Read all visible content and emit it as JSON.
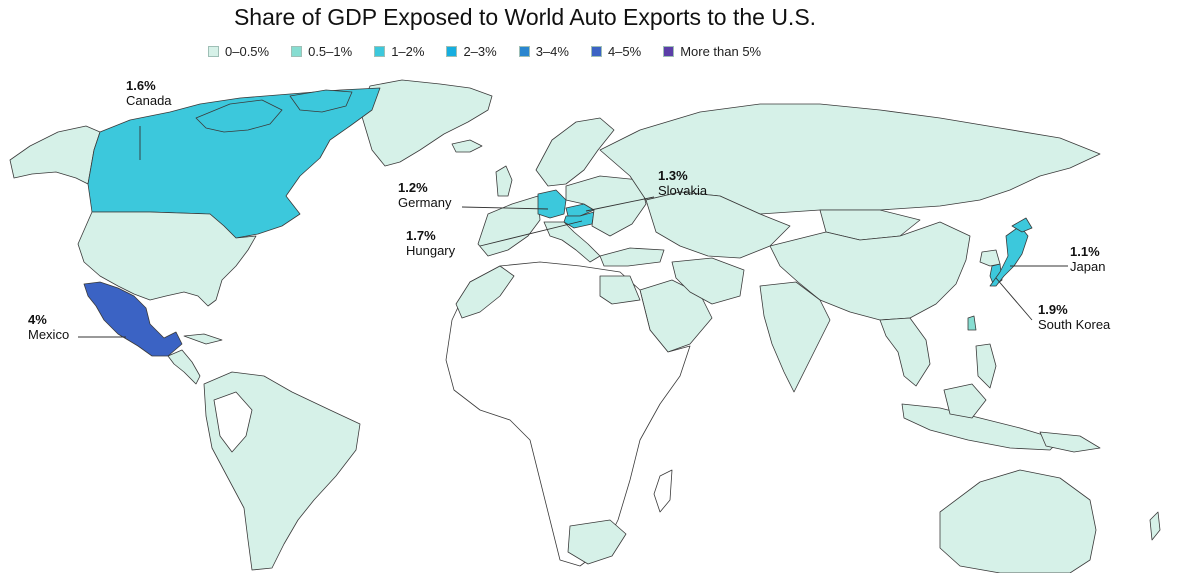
{
  "title": "Share of GDP Exposed to World Auto Exports to the U.S.",
  "legend": [
    {
      "label": "0–0.5%",
      "color": "#d6f1e8"
    },
    {
      "label": "0.5–1%",
      "color": "#86ddd1"
    },
    {
      "label": "1–2%",
      "color": "#3cc8dc"
    },
    {
      "label": "2–3%",
      "color": "#16aee0"
    },
    {
      "label": "3–4%",
      "color": "#2a86cf"
    },
    {
      "label": "4–5%",
      "color": "#3b63c4"
    },
    {
      "label": "More than 5%",
      "color": "#5b3ea8"
    }
  ],
  "colors": {
    "no_data": "#ffffff",
    "base": "#d6f1e8"
  },
  "callouts": [
    {
      "id": "canada",
      "value": "1.6%",
      "name": "Canada",
      "share": 1.6
    },
    {
      "id": "mexico",
      "value": "4%",
      "name": "Mexico",
      "share": 4
    },
    {
      "id": "germany",
      "value": "1.2%",
      "name": "Germany",
      "share": 1.2
    },
    {
      "id": "hungary",
      "value": "1.7%",
      "name": "Hungary",
      "share": 1.7
    },
    {
      "id": "slovakia",
      "value": "1.3%",
      "name": "Slovakia",
      "share": 1.3
    },
    {
      "id": "japan",
      "value": "1.1%",
      "name": "Japan",
      "share": 1.1
    },
    {
      "id": "korea",
      "value": "1.9%",
      "name": "South Korea",
      "share": 1.9
    }
  ]
}
